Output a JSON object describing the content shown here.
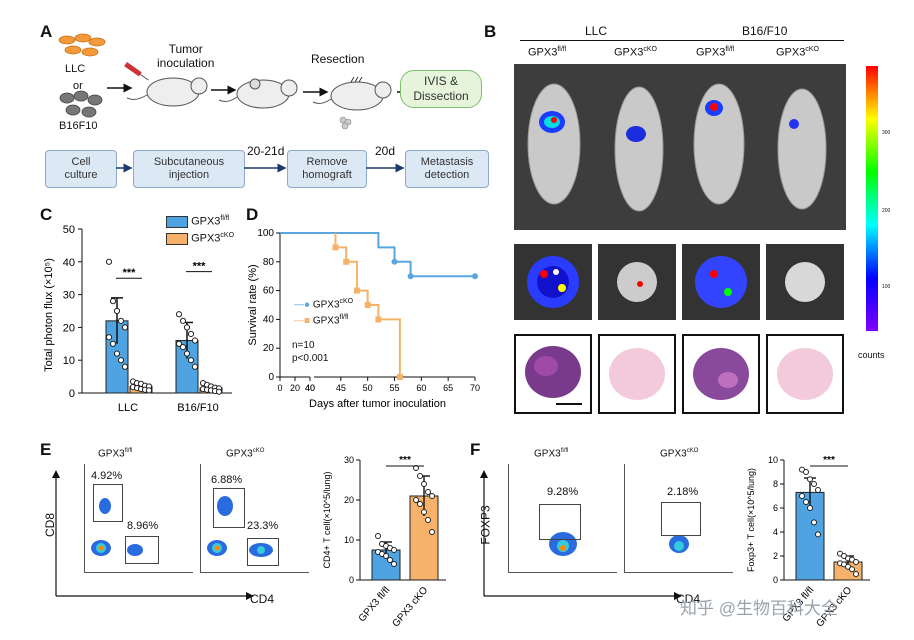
{
  "panels": {
    "a": "A",
    "b": "B",
    "c": "C",
    "d": "D",
    "e": "E",
    "f": "F"
  },
  "panel_a": {
    "cell1": "LLC",
    "or": "or",
    "cell2": "B16F10",
    "step1": "Tumor\ninoculation",
    "step2": "Resection",
    "step3": "IVIS &\nDissection",
    "boxes": [
      "Cell\nculture",
      "Subcutaneous\ninjection",
      "Remove\nhomograft",
      "Metastasis\ndetection"
    ],
    "interval1": "20-21d",
    "interval2": "20d"
  },
  "panel_b": {
    "group1": "LLC",
    "group2": "B16/F10",
    "cols": [
      "GPX3",
      "GPX3",
      "GPX3",
      "GPX3"
    ],
    "col_sup": [
      "fl/fl",
      "cKO",
      "fl/fl",
      "cKO"
    ],
    "colorbar_label": "counts",
    "colorbar_ticks": [
      "300",
      "200",
      "100"
    ],
    "colors": {
      "colorbar": [
        "#ff0000",
        "#ffff00",
        "#00ff00",
        "#00ffff",
        "#0000ff",
        "#8000ff"
      ]
    }
  },
  "panel_c": {
    "legend1": "GPX3",
    "legend1_sup": "fl/fl",
    "legend2": "GPX3",
    "legend2_sup": "cKO",
    "sig1": "***",
    "sig2": "***"
  },
  "panel_d": {
    "legend1": "GPX3",
    "legend1_sup": "cKO",
    "legend2": "GPX3",
    "legend2_sup": "fl/fl",
    "note1": "n=10",
    "note2": "p<0.001"
  },
  "panel_e": {
    "title1": "GPX3",
    "title1_sup": "fl/fl",
    "title2": "GPX3",
    "title2_sup": "cKO",
    "ylab": "CD8",
    "xlab": "CD4",
    "pct": [
      "4.92%",
      "8.96%",
      "6.88%",
      "23.3%"
    ],
    "sig": "***"
  },
  "panel_f": {
    "title1": "GPX3",
    "title1_sup": "fl/fl",
    "title2": "GPX3",
    "title2_sup": "cKO",
    "ylab": "FOXP3",
    "xlab": "CD4",
    "pct": [
      "9.28%",
      "2.18%"
    ],
    "sig": "***"
  },
  "watermark": "知乎 @生物百科大全",
  "chart_data": [
    {
      "id": "C",
      "type": "bar",
      "title": "",
      "ylabel": "Total photon flux (×10^5)",
      "xlabel": "",
      "categories": [
        "LLC",
        "B16/F10"
      ],
      "ylim": [
        0,
        50
      ],
      "yticks": [
        0,
        10,
        20,
        30,
        40,
        50
      ],
      "series": [
        {
          "name": "GPX3 fl/fl",
          "color": "#4ea3e0",
          "values": [
            22,
            16
          ],
          "errors": [
            7,
            5.5
          ],
          "points": [
            [
              40,
              28,
              25,
              22,
              20,
              17,
              15,
              12,
              10,
              8
            ],
            [
              24,
              22,
              20,
              18,
              16,
              15,
              14,
              12,
              10,
              8
            ]
          ]
        },
        {
          "name": "GPX3 cKO",
          "color": "#f6b26b",
          "values": [
            2,
            1.5
          ],
          "errors": [
            0.8,
            0.6
          ],
          "points": [
            [
              3.5,
              3,
              2.8,
              2.2,
              2,
              1.8,
              1.5,
              1.2,
              1,
              0.8
            ],
            [
              3,
              2.5,
              2,
              1.6,
              1.4,
              1.2,
              1,
              0.8,
              0.6,
              0.4
            ]
          ]
        }
      ]
    },
    {
      "id": "D",
      "type": "line",
      "xlabel": "Days after tumor inoculation",
      "ylabel": "Survival rate (%)",
      "xticks": [
        "0",
        "20",
        "40",
        "40",
        "45",
        "50",
        "55",
        "60",
        "65",
        "70"
      ],
      "yticks": [
        0,
        20,
        40,
        60,
        80,
        100
      ],
      "ylim": [
        0,
        100
      ],
      "series": [
        {
          "name": "GPX3 cKO",
          "color": "#5aa7e0",
          "x": [
            40,
            52,
            52,
            55,
            55,
            58,
            58,
            70
          ],
          "y": [
            100,
            100,
            90,
            90,
            80,
            80,
            70,
            70
          ]
        },
        {
          "name": "GPX3 fl/fl",
          "color": "#f4b26a",
          "x": [
            44,
            44,
            46,
            46,
            48,
            48,
            50,
            50,
            52,
            52,
            56,
            56
          ],
          "y": [
            100,
            90,
            90,
            80,
            80,
            60,
            60,
            50,
            50,
            40,
            40,
            0
          ]
        }
      ]
    },
    {
      "id": "E-bar",
      "type": "bar",
      "ylabel": "CD4+ T cell(×10^5/lung)",
      "categories": [
        "GPX3 fl/fl",
        "GPX3 cKO"
      ],
      "ylim": [
        0,
        30
      ],
      "yticks": [
        0,
        10,
        20,
        30
      ],
      "values": [
        7.5,
        21
      ],
      "errors": [
        2,
        5
      ],
      "colors": [
        "#4ea3e0",
        "#f6b26b"
      ],
      "points": [
        [
          11,
          9,
          8.5,
          8,
          7.5,
          7,
          6.5,
          6,
          5,
          4
        ],
        [
          28,
          26,
          24,
          22,
          21,
          20,
          19,
          17,
          15,
          12
        ]
      ]
    },
    {
      "id": "F-bar",
      "type": "bar",
      "ylabel": "Foxp3+ T cell(×10^5/lung)",
      "categories": [
        "GPX3 fl/fl",
        "GPX3 cKO"
      ],
      "ylim": [
        0,
        10
      ],
      "yticks": [
        0,
        2,
        4,
        6,
        8,
        10
      ],
      "values": [
        7.3,
        1.5
      ],
      "errors": [
        1.2,
        0.5
      ],
      "colors": [
        "#4ea3e0",
        "#f6b26b"
      ],
      "points": [
        [
          9.2,
          9,
          8.4,
          8,
          7.5,
          7,
          6.5,
          6,
          4.8,
          3.8
        ],
        [
          2.2,
          2,
          1.8,
          1.7,
          1.5,
          1.4,
          1.3,
          1.1,
          0.9,
          0.5
        ]
      ]
    }
  ]
}
